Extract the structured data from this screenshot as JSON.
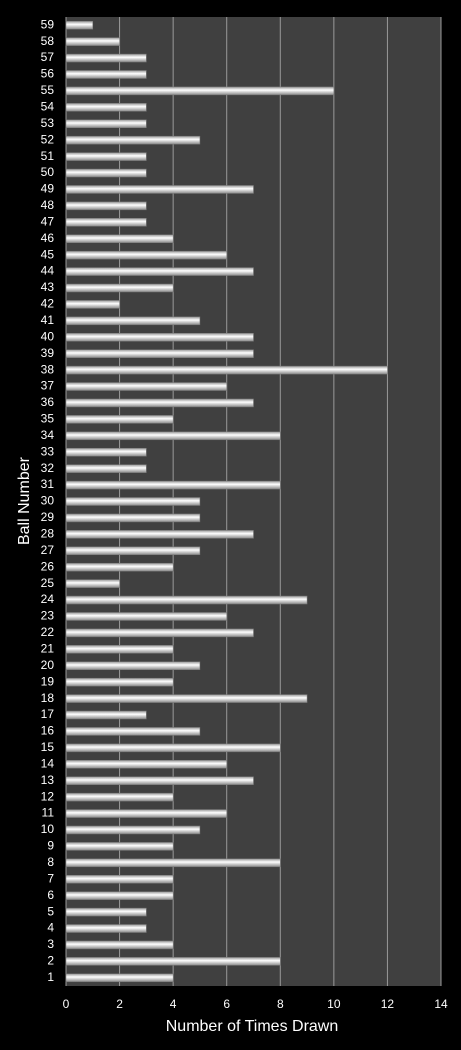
{
  "chart_data": {
    "type": "bar",
    "orientation": "horizontal",
    "x_label": "Number of Times Drawn",
    "y_label": "Ball Number",
    "categories": [
      "1",
      "2",
      "3",
      "4",
      "5",
      "6",
      "7",
      "8",
      "9",
      "10",
      "11",
      "12",
      "13",
      "14",
      "15",
      "16",
      "17",
      "18",
      "19",
      "20",
      "21",
      "22",
      "23",
      "24",
      "25",
      "26",
      "27",
      "28",
      "29",
      "30",
      "31",
      "32",
      "33",
      "34",
      "35",
      "36",
      "37",
      "38",
      "39",
      "40",
      "41",
      "42",
      "43",
      "44",
      "45",
      "46",
      "47",
      "48",
      "49",
      "50",
      "51",
      "52",
      "53",
      "54",
      "55",
      "56",
      "57",
      "58",
      "59"
    ],
    "values": [
      4,
      8,
      4,
      3,
      3,
      4,
      4,
      8,
      4,
      5,
      6,
      4,
      7,
      6,
      8,
      5,
      3,
      9,
      4,
      5,
      4,
      7,
      6,
      9,
      2,
      4,
      5,
      7,
      5,
      5,
      8,
      3,
      3,
      8,
      4,
      7,
      6,
      12,
      7,
      7,
      5,
      2,
      4,
      7,
      6,
      4,
      3,
      3,
      7,
      3,
      3,
      5,
      3,
      3,
      10,
      3,
      3,
      2,
      1
    ],
    "color": "#ffffff",
    "xlim": [
      0,
      14
    ],
    "xticks": [
      0,
      2,
      4,
      6,
      8,
      10,
      12,
      14
    ],
    "grid": true
  }
}
